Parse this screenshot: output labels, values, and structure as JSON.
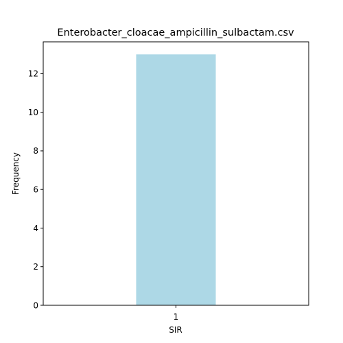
{
  "chart_data": {
    "type": "bar",
    "title": "Enterobacter_cloacae_ampicillin_sulbactam.csv",
    "xlabel": "SIR",
    "ylabel": "Frequency",
    "categories": [
      "1"
    ],
    "values": [
      13
    ],
    "ylim": [
      0,
      13.65
    ],
    "yticks": [
      0,
      2,
      4,
      6,
      8,
      10,
      12
    ],
    "xlim": [
      -0.5,
      0.5
    ],
    "bar_width": 0.3,
    "bar_color": "#add8e6",
    "grid": false,
    "legend": "none"
  }
}
